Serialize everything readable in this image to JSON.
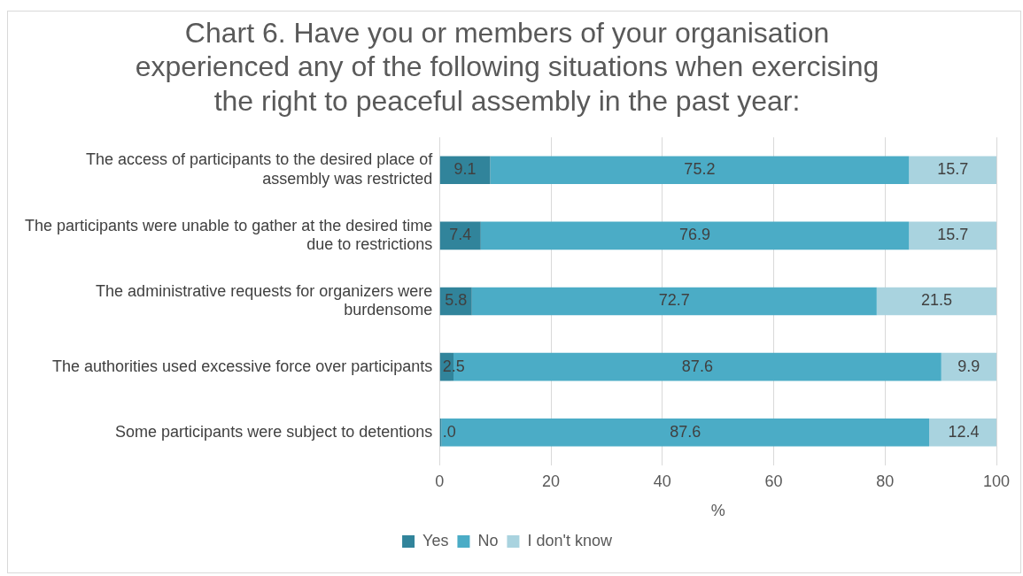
{
  "chart_data": {
    "type": "bar",
    "orientation": "horizontal",
    "stacked": true,
    "title": "Chart 6. Have you or members of your organisation experienced any of the following situations when exercising the right to peaceful assembly in the past year:",
    "xlabel": "%",
    "categories": [
      "The access of participants to the desired place of assembly was restricted",
      "The participants were unable to gather at the desired time due to restrictions",
      "The administrative requests for organizers were burdensome",
      "The authorities used excessive force over participants",
      "Some participants were subject to detentions"
    ],
    "series": [
      {
        "name": "Yes",
        "color": "#31849b",
        "values": [
          9.1,
          7.4,
          5.8,
          2.5,
          0
        ],
        "value_labels": [
          "9.1",
          "7.4",
          "5.8",
          "2.5",
          ".0"
        ]
      },
      {
        "name": "No",
        "color": "#4bacc6",
        "values": [
          75.2,
          76.9,
          72.7,
          87.6,
          87.6
        ],
        "value_labels": [
          "75.2",
          "76.9",
          "72.7",
          "87.6",
          "87.6"
        ]
      },
      {
        "name": "I don't know",
        "color": "#a9d3df",
        "values": [
          15.7,
          15.7,
          21.5,
          9.9,
          12.4
        ],
        "value_labels": [
          "15.7",
          "15.7",
          "21.5",
          "9.9",
          "12.4"
        ]
      }
    ],
    "xlim": [
      0,
      100
    ],
    "xticks": [
      0,
      20,
      40,
      60,
      80,
      100
    ],
    "grid": "x",
    "legend": "bottom"
  }
}
